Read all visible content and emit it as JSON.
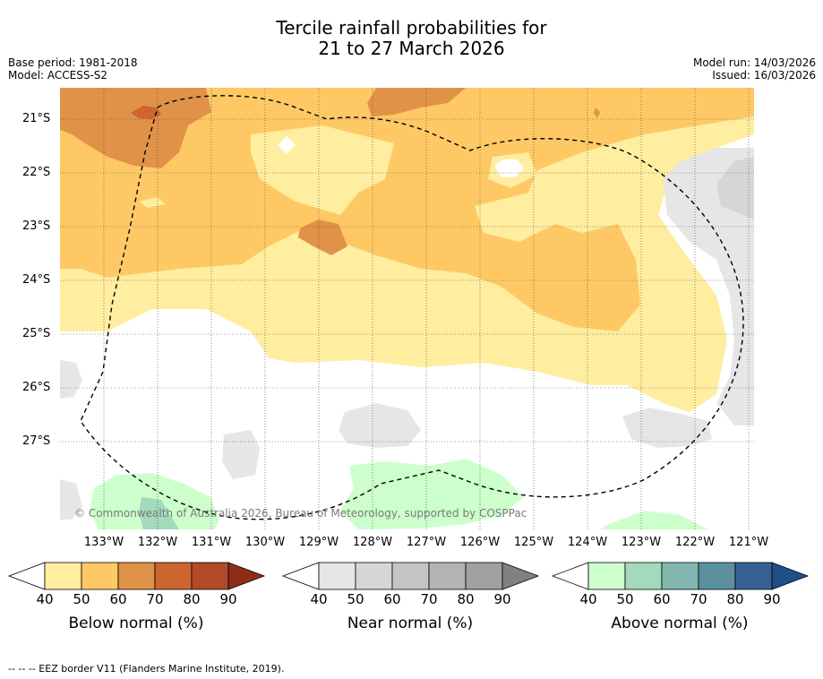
{
  "title": {
    "line1": "Tercile rainfall probabilities for",
    "line2": "21 to 27 March 2026"
  },
  "info_left": {
    "base_period": "Base period: 1981-2018",
    "model": "Model: ACCESS-S2"
  },
  "info_right": {
    "model_run": "Model run: 14/03/2026",
    "issued": "Issued: 16/03/2026"
  },
  "map": {
    "latitude_labels": [
      "21°S",
      "22°S",
      "23°S",
      "24°S",
      "25°S",
      "26°S",
      "27°S"
    ],
    "longitude_labels": [
      "133°W",
      "132°W",
      "131°W",
      "130°W",
      "129°W",
      "128°W",
      "127°W",
      "126°W",
      "125°W",
      "124°W",
      "123°W",
      "122°W",
      "121°W"
    ],
    "copyright": "© Commonwealth of Australia 2026, Bureau of Meteorology, supported by COSPPac"
  },
  "colorbars": [
    {
      "title": "Below normal (%)",
      "ticks": [
        "40",
        "50",
        "60",
        "70",
        "80",
        "90"
      ],
      "colors": [
        "#ffffff",
        "#ffeda0",
        "#fec965",
        "#e09248",
        "#cc6530",
        "#b14a27",
        "#8e2e1a"
      ]
    },
    {
      "title": "Near normal (%)",
      "ticks": [
        "40",
        "50",
        "60",
        "70",
        "80",
        "90"
      ],
      "colors": [
        "#ffffff",
        "#e6e6e6",
        "#d6d6d6",
        "#c4c4c4",
        "#b3b3b3",
        "#a0a0a0",
        "#808080"
      ]
    },
    {
      "title": "Above normal (%)",
      "ticks": [
        "40",
        "50",
        "60",
        "70",
        "80",
        "90"
      ],
      "colors": [
        "#ffffff",
        "#ccffcc",
        "#a3d9bc",
        "#80b8b0",
        "#5a90a0",
        "#356293",
        "#1e4f8a"
      ]
    }
  ],
  "footer": "--  --  -- EEZ border V11 (Flanders Marine Institute, 2019).",
  "colors": {
    "below_50": "#ffeda0",
    "below_60": "#fec965",
    "below_70": "#e09248",
    "below_80": "#cc6530",
    "near_50": "#e6e6e6",
    "near_60": "#d6d6d6",
    "above_50": "#ccffcc",
    "above_60": "#a3d9bc"
  }
}
